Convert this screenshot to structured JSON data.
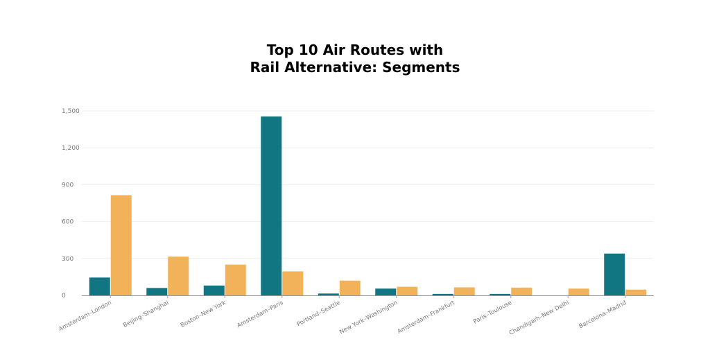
{
  "chart_data": {
    "type": "bar",
    "title_lines": [
      "Top 10 Air Routes with",
      "Rail Alternative: Segments"
    ],
    "categories": [
      "Amsterdam–London",
      "Beijing–Shanghai",
      "Boston–New York",
      "Amsterdam–Paris",
      "Portland–Seattle",
      "New York–Washington",
      "Amsterdam–Frankfurt",
      "Paris–Toulouse",
      "Chandigarh–New Delhi",
      "Barcelona–Madrid"
    ],
    "series": [
      {
        "values": [
          145,
          60,
          80,
          1455,
          15,
          55,
          12,
          12,
          0,
          340
        ],
        "color": "#127582"
      },
      {
        "values": [
          815,
          315,
          250,
          195,
          120,
          70,
          65,
          63,
          55,
          47
        ],
        "color": "#f1b25a"
      }
    ],
    "xlabel": "",
    "ylabel": "",
    "ylim": [
      0,
      1500
    ],
    "yticks": [
      0,
      300,
      600,
      900,
      1200,
      1500
    ],
    "ytick_labels": [
      "0",
      "300",
      "600",
      "900",
      "1,200",
      "1,500"
    ],
    "grid": true,
    "legend": "none"
  }
}
